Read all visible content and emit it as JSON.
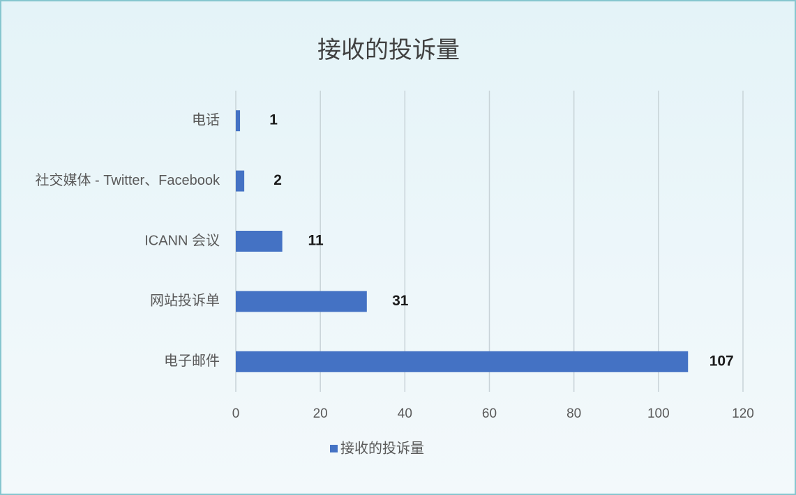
{
  "chart_data": {
    "type": "bar",
    "orientation": "horizontal",
    "title": "接收的投诉量",
    "categories": [
      "电话",
      "社交媒体 - Twitter、Facebook",
      "ICANN 会议",
      "网站投诉单",
      "电子邮件"
    ],
    "series": [
      {
        "name": "接收的投诉量",
        "color": "#4472c4",
        "values": [
          1,
          2,
          11,
          31,
          107
        ]
      }
    ],
    "xlim": [
      0,
      120
    ],
    "xticks": [
      0,
      20,
      40,
      60,
      80,
      100,
      120
    ],
    "grid": true,
    "legend": "bottom"
  }
}
